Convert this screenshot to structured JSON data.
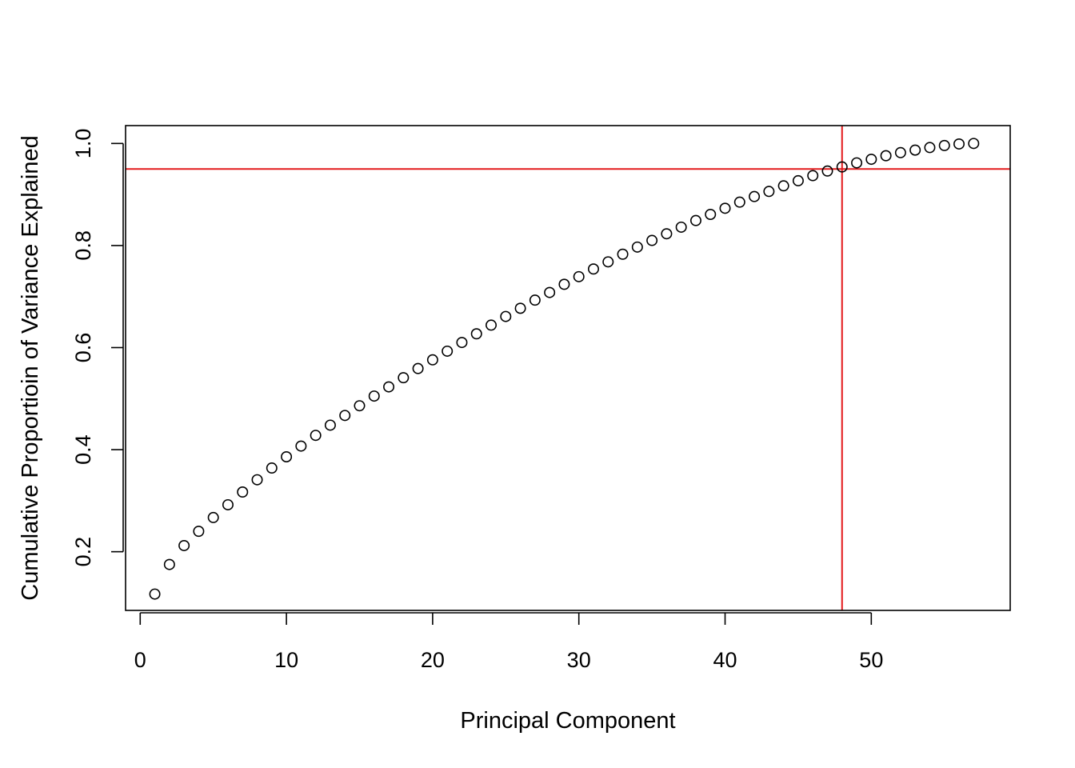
{
  "chart_data": {
    "type": "scatter",
    "title": "",
    "xlabel": "Principal Component",
    "ylabel": "Cumulative Proportioin of Variance Explained",
    "xlim": [
      -1,
      59.5
    ],
    "ylim": [
      0.085,
      1.035
    ],
    "x_ticks": [
      0,
      10,
      20,
      30,
      40,
      50
    ],
    "x_tick_labels": [
      "0",
      "10",
      "20",
      "30",
      "40",
      "50"
    ],
    "y_ticks": [
      0.2,
      0.4,
      0.6,
      0.8,
      1.0
    ],
    "y_tick_labels": [
      "0.2",
      "0.4",
      "0.6",
      "0.8",
      "1.0"
    ],
    "grid": false,
    "marker": "open-circle",
    "series": [
      {
        "x": [
          1,
          2,
          3,
          4,
          5,
          6,
          7,
          8,
          9,
          10,
          11,
          12,
          13,
          14,
          15,
          16,
          17,
          18,
          19,
          20,
          21,
          22,
          23,
          24,
          25,
          26,
          27,
          28,
          29,
          30,
          31,
          32,
          33,
          34,
          35,
          36,
          37,
          38,
          39,
          40,
          41,
          42,
          43,
          44,
          45,
          46,
          47,
          48,
          49,
          50,
          51,
          52,
          53,
          54,
          55,
          56,
          57
        ],
        "values": [
          0.117,
          0.175,
          0.212,
          0.24,
          0.267,
          0.292,
          0.317,
          0.341,
          0.364,
          0.386,
          0.407,
          0.428,
          0.448,
          0.467,
          0.486,
          0.505,
          0.523,
          0.541,
          0.559,
          0.576,
          0.593,
          0.61,
          0.627,
          0.644,
          0.661,
          0.677,
          0.693,
          0.708,
          0.724,
          0.739,
          0.754,
          0.768,
          0.783,
          0.797,
          0.81,
          0.823,
          0.836,
          0.849,
          0.861,
          0.873,
          0.885,
          0.896,
          0.906,
          0.917,
          0.927,
          0.937,
          0.946,
          0.954,
          0.962,
          0.969,
          0.976,
          0.982,
          0.987,
          0.992,
          0.996,
          0.999,
          1.0
        ]
      }
    ],
    "reference_lines": [
      {
        "orientation": "horizontal",
        "value": 0.95,
        "color": "#e31a1c"
      },
      {
        "orientation": "vertical",
        "value": 48,
        "color": "#e31a1c"
      }
    ],
    "colors": {
      "points": "#000000",
      "reference": "#e31a1c",
      "frame": "#000000"
    }
  }
}
